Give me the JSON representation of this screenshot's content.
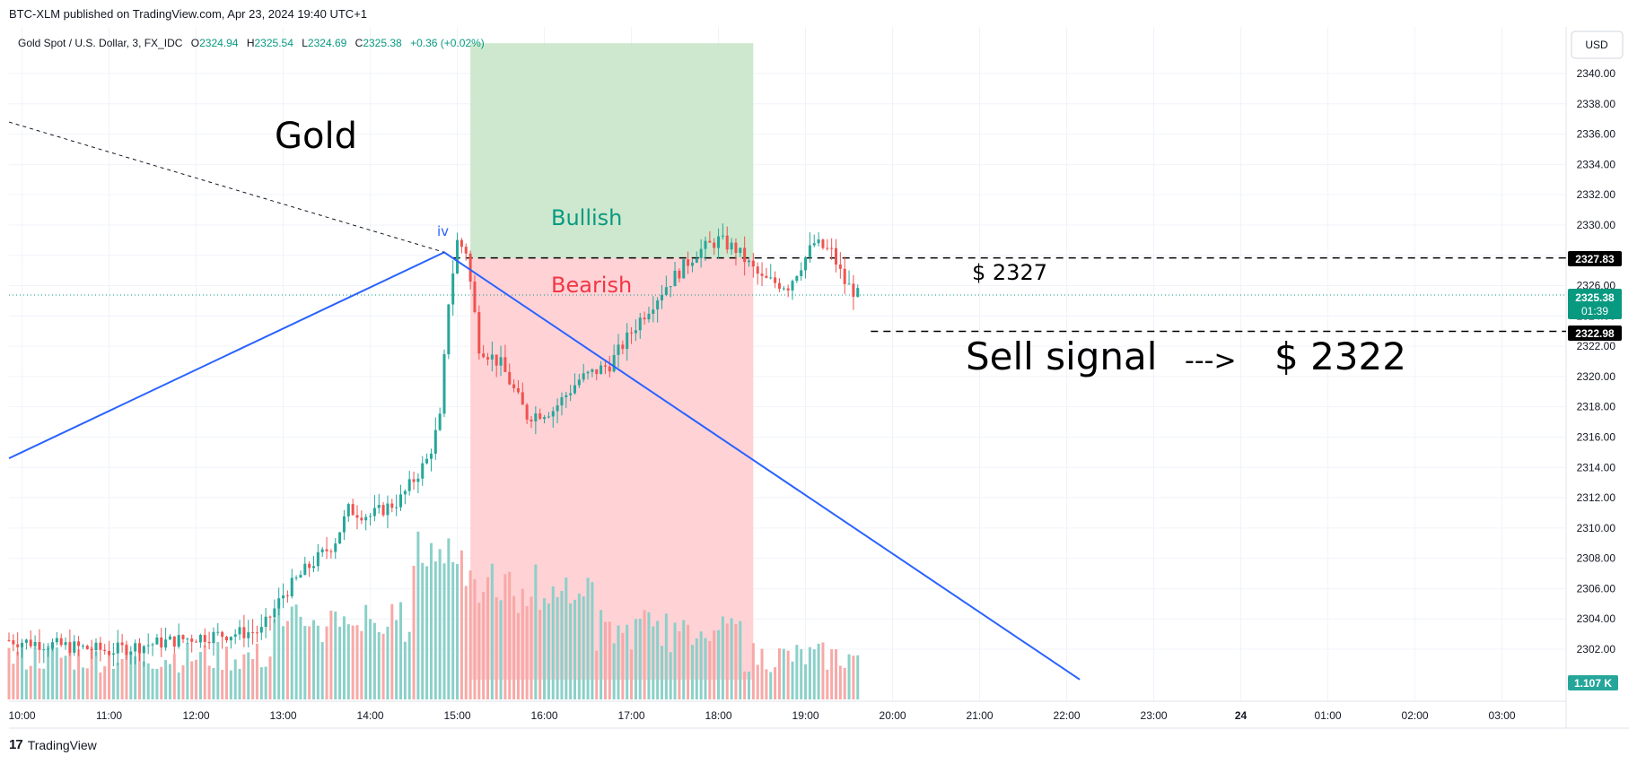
{
  "header": {
    "published": "BTC-XLM published on TradingView.com, Apr 23, 2024 19:40 UTC+1"
  },
  "legend": {
    "symbol": "Gold Spot / U.S. Dollar, 3, FX_IDC",
    "o_label": "O",
    "o_value": "2324.94",
    "h_label": "H",
    "h_value": "2325.54",
    "l_label": "L",
    "l_value": "2324.69",
    "c_label": "C",
    "c_value": "2325.38",
    "change": "+0.36 (+0.02%)"
  },
  "currency_button": "USD",
  "footer": {
    "brand": "TradingView",
    "logo": "tradingview-logo-icon"
  },
  "colors": {
    "up": "#26a69a",
    "down": "#ef5350",
    "vol_up": "#8bd0c9",
    "vol_down": "#f7a9a7",
    "trend": "#2962ff",
    "bull_zone": "#c8e6c9",
    "bear_zone": "#ffcdd2",
    "bull_text": "#089981",
    "bear_text": "#f23645"
  },
  "annotations": {
    "gold": "Gold",
    "bullish": "Bullish",
    "bearish": "Bearish",
    "wave": "iv",
    "price_2327": "$ 2327",
    "sell_signal": "Sell signal",
    "arrow": "--->",
    "target": "$ 2322"
  },
  "price_badges": {
    "level_high": "2327.83",
    "last": "2325.38",
    "countdown": "01:39",
    "level_low": "2322.98",
    "volume": "1.107 K"
  },
  "chart_data": {
    "type": "candlestick",
    "symbol": "Gold Spot / U.S. Dollar",
    "interval": "3",
    "ylim": [
      2300,
      2342
    ],
    "y_ticks": [
      "2302.00",
      "2304.00",
      "2306.00",
      "2308.00",
      "2310.00",
      "2312.00",
      "2314.00",
      "2316.00",
      "2318.00",
      "2320.00",
      "2322.00",
      "2324.00",
      "2326.00",
      "2328.00",
      "2330.00",
      "2332.00",
      "2334.00",
      "2336.00",
      "2338.00",
      "2340.00"
    ],
    "x_ticks": [
      "10:00",
      "11:00",
      "12:00",
      "13:00",
      "14:00",
      "15:00",
      "16:00",
      "17:00",
      "18:00",
      "19:00",
      "20:00",
      "21:00",
      "22:00",
      "23:00",
      "24",
      "01:00",
      "02:00",
      "03:00"
    ],
    "x_tick_hours": [
      10,
      11,
      12,
      13,
      14,
      15,
      16,
      17,
      18,
      19,
      20,
      21,
      22,
      23,
      24,
      25,
      26,
      27
    ],
    "candle_interval_minutes": 3,
    "candle_start_time": "09:51",
    "close_path_keypoints": [
      {
        "time": "09:51",
        "close": 2302.6
      },
      {
        "time": "11:00",
        "close": 2301.9
      },
      {
        "time": "12:00",
        "close": 2302.8
      },
      {
        "time": "12:45",
        "close": 2303.2
      },
      {
        "time": "13:00",
        "close": 2305.6
      },
      {
        "time": "13:15",
        "close": 2307.2
      },
      {
        "time": "13:35",
        "close": 2309.0
      },
      {
        "time": "13:45",
        "close": 2311.2
      },
      {
        "time": "14:00",
        "close": 2310.8
      },
      {
        "time": "14:20",
        "close": 2311.8
      },
      {
        "time": "14:40",
        "close": 2314.6
      },
      {
        "time": "14:48",
        "close": 2317.2
      },
      {
        "time": "14:54",
        "close": 2325.0
      },
      {
        "time": "15:00",
        "close": 2328.9
      },
      {
        "time": "15:06",
        "close": 2328.3
      },
      {
        "time": "15:15",
        "close": 2322.0
      },
      {
        "time": "15:30",
        "close": 2320.8
      },
      {
        "time": "15:48",
        "close": 2317.4
      },
      {
        "time": "16:06",
        "close": 2317.8
      },
      {
        "time": "16:24",
        "close": 2319.8
      },
      {
        "time": "16:45",
        "close": 2320.8
      },
      {
        "time": "17:06",
        "close": 2323.8
      },
      {
        "time": "17:24",
        "close": 2326.0
      },
      {
        "time": "17:45",
        "close": 2328.2
      },
      {
        "time": "18:00",
        "close": 2329.0
      },
      {
        "time": "18:12",
        "close": 2328.4
      },
      {
        "time": "18:30",
        "close": 2326.4
      },
      {
        "time": "18:48",
        "close": 2326.0
      },
      {
        "time": "19:06",
        "close": 2328.8
      },
      {
        "time": "19:18",
        "close": 2328.2
      },
      {
        "time": "19:27",
        "close": 2326.2
      },
      {
        "time": "19:36",
        "close": 2325.38
      }
    ],
    "zones": [
      {
        "name": "Bullish",
        "from_time": "15:09",
        "to_time": "18:24",
        "from_price": 2327.83,
        "to_price": 2342
      },
      {
        "name": "Bearish",
        "from_time": "15:09",
        "to_time": "18:24",
        "from_price": 2300,
        "to_price": 2327.83
      }
    ],
    "trendlines": [
      {
        "style": "solid",
        "points": [
          {
            "time": "09:51",
            "price": 2314.6
          },
          {
            "time": "14:51",
            "price": 2328.2
          },
          {
            "time": "22:09",
            "price": 2300
          }
        ]
      },
      {
        "style": "dashed",
        "points": [
          {
            "time": "09:51",
            "price": 2336.8
          },
          {
            "time": "14:51",
            "price": 2328.2
          }
        ]
      }
    ],
    "levels": [
      {
        "price": 2327.83,
        "from_time": "14:57",
        "style": "dashed"
      },
      {
        "price": 2322.98,
        "from_time": "19:45",
        "style": "dashed"
      },
      {
        "price": 2325.38,
        "from_time": "09:51",
        "style": "dotted",
        "role": "last price"
      }
    ],
    "volume": {
      "unit": "K",
      "last": 1.107
    }
  }
}
